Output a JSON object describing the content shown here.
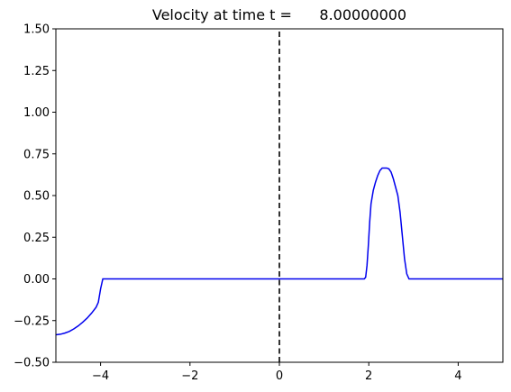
{
  "chart_data": {
    "type": "line",
    "title": "Velocity at time t =      8.00000000",
    "xlabel": "",
    "ylabel": "",
    "xlim": [
      -5,
      5
    ],
    "ylim": [
      -0.5,
      1.5
    ],
    "x_ticks": [
      -4,
      -2,
      0,
      2,
      4
    ],
    "x_tick_labels": [
      "−4",
      "−2",
      "0",
      "2",
      "4"
    ],
    "y_ticks": [
      -0.5,
      -0.25,
      0.0,
      0.25,
      0.5,
      0.75,
      1.0,
      1.25,
      1.5
    ],
    "y_tick_labels": [
      "−0.50",
      "−0.25",
      "0.00",
      "0.25",
      "0.50",
      "0.75",
      "1.00",
      "1.25",
      "1.50"
    ],
    "grid": false,
    "series": [
      {
        "color": "#0000ee",
        "style": "solid",
        "x": [
          -5.0,
          -4.9,
          -4.8,
          -4.7,
          -4.6,
          -4.5,
          -4.4,
          -4.3,
          -4.2,
          -4.1,
          -4.05,
          -4.0,
          -3.95,
          -3.9,
          -3.0,
          -2.0,
          -1.0,
          0.0,
          1.0,
          1.9,
          1.93,
          1.96,
          1.99,
          2.02,
          2.05,
          2.1,
          2.15,
          2.2,
          2.25,
          2.3,
          2.35,
          2.4,
          2.45,
          2.5,
          2.55,
          2.6,
          2.65,
          2.7,
          2.75,
          2.8,
          2.85,
          2.9,
          2.95,
          2.98,
          3.01,
          3.04,
          3.07,
          3.1,
          4.0,
          5.0
        ],
        "y": [
          -0.335,
          -0.332,
          -0.325,
          -0.315,
          -0.3,
          -0.282,
          -0.26,
          -0.235,
          -0.205,
          -0.17,
          -0.14,
          -0.06,
          0.0,
          0.0,
          0.0,
          0.0,
          0.0,
          0.0,
          0.0,
          0.0,
          0.01,
          0.08,
          0.2,
          0.34,
          0.45,
          0.53,
          0.58,
          0.62,
          0.65,
          0.665,
          0.665,
          0.665,
          0.66,
          0.64,
          0.6,
          0.55,
          0.5,
          0.4,
          0.26,
          0.12,
          0.03,
          0.0,
          0.0,
          0.0,
          0.0,
          0.0,
          0.0,
          0.0,
          0.0,
          0.0
        ]
      },
      {
        "color": "#000000",
        "style": "dashed",
        "x": [
          0,
          0
        ],
        "y": [
          -0.5,
          1.5
        ]
      }
    ]
  }
}
